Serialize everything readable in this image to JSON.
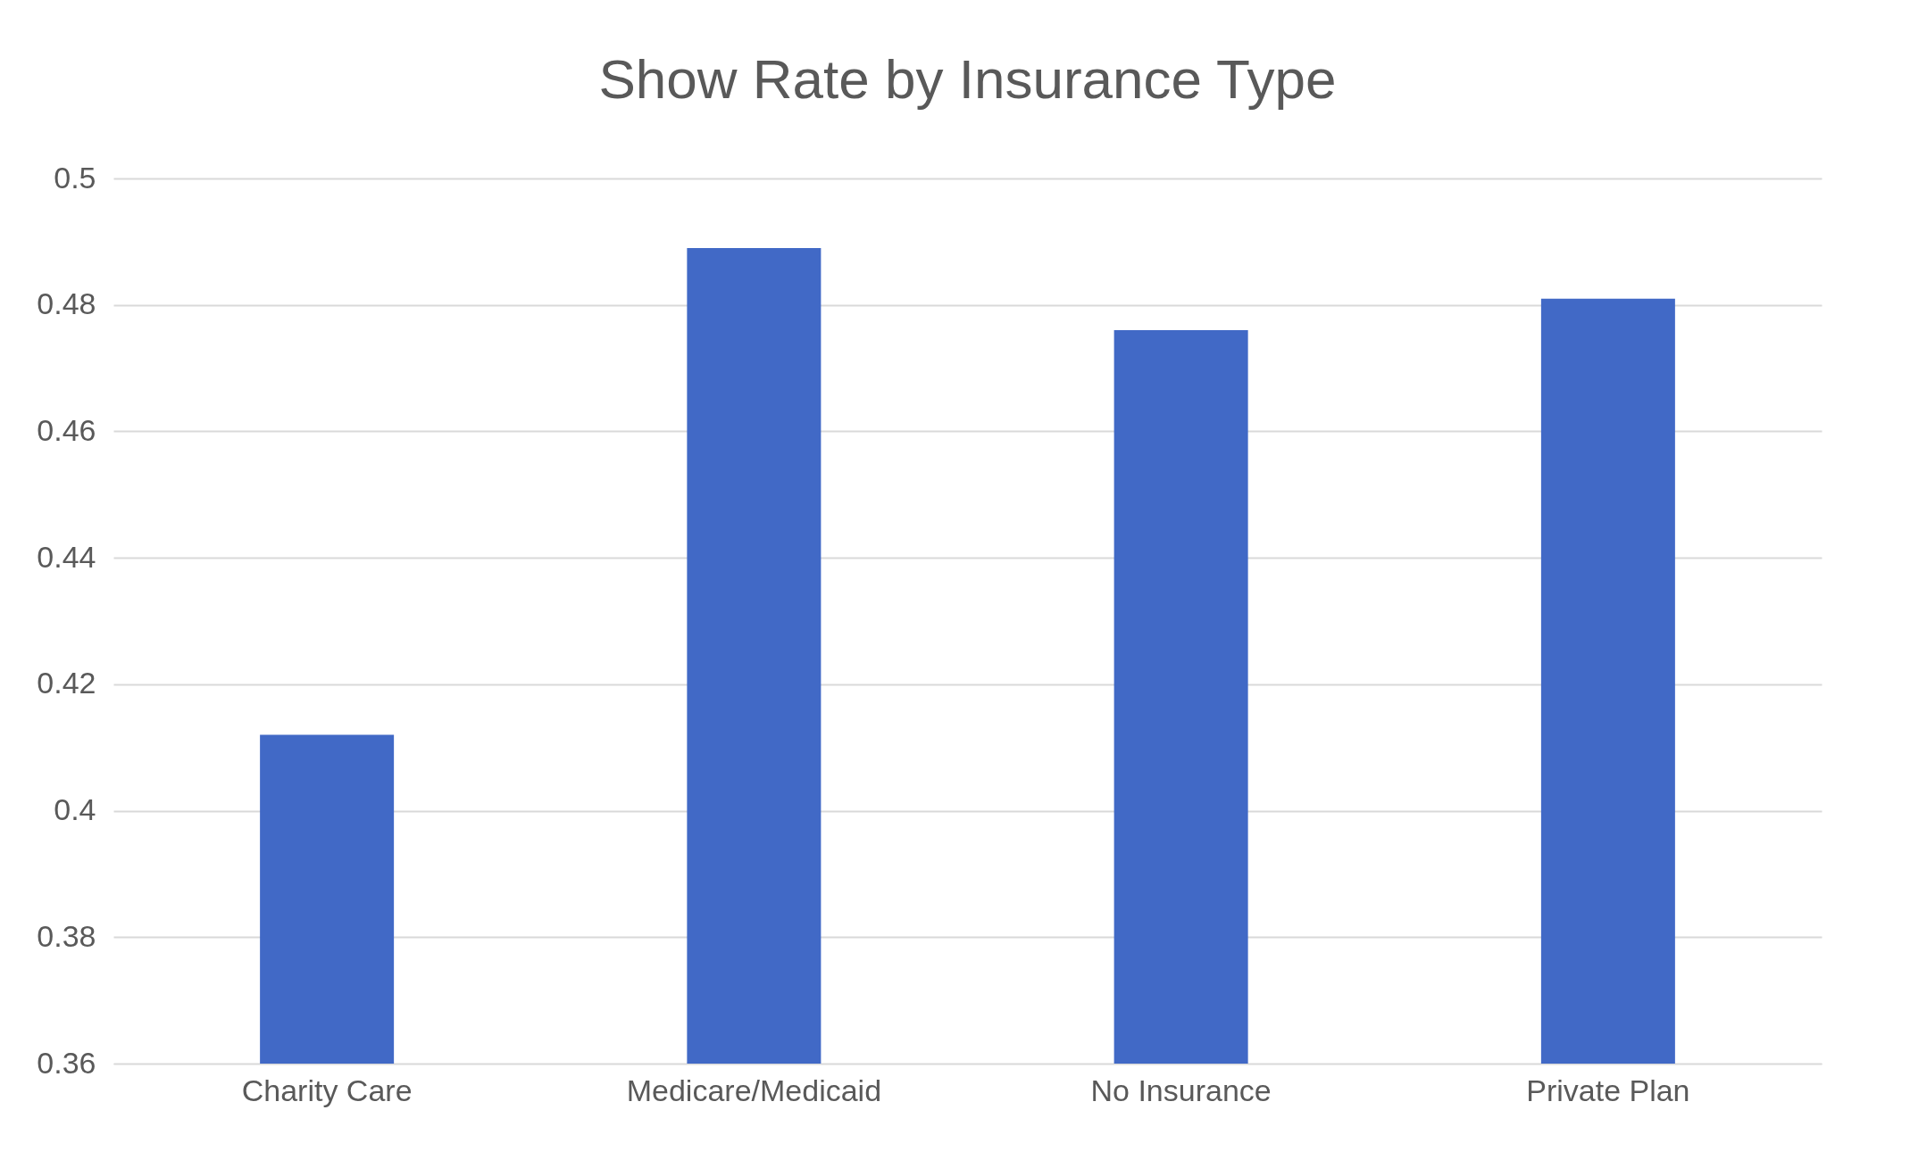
{
  "chart_data": {
    "type": "bar",
    "title": "Show Rate by Insurance Type",
    "categories": [
      "Charity Care",
      "Medicare/Medicaid",
      "No Insurance",
      "Private Plan"
    ],
    "values": [
      0.412,
      0.489,
      0.476,
      0.481
    ],
    "color": "#4169c6",
    "ylim": [
      0.36,
      0.5
    ],
    "yticks": [
      0.36,
      0.38,
      0.4,
      0.42,
      0.44,
      0.46,
      0.48,
      0.5
    ],
    "grid": "y"
  }
}
